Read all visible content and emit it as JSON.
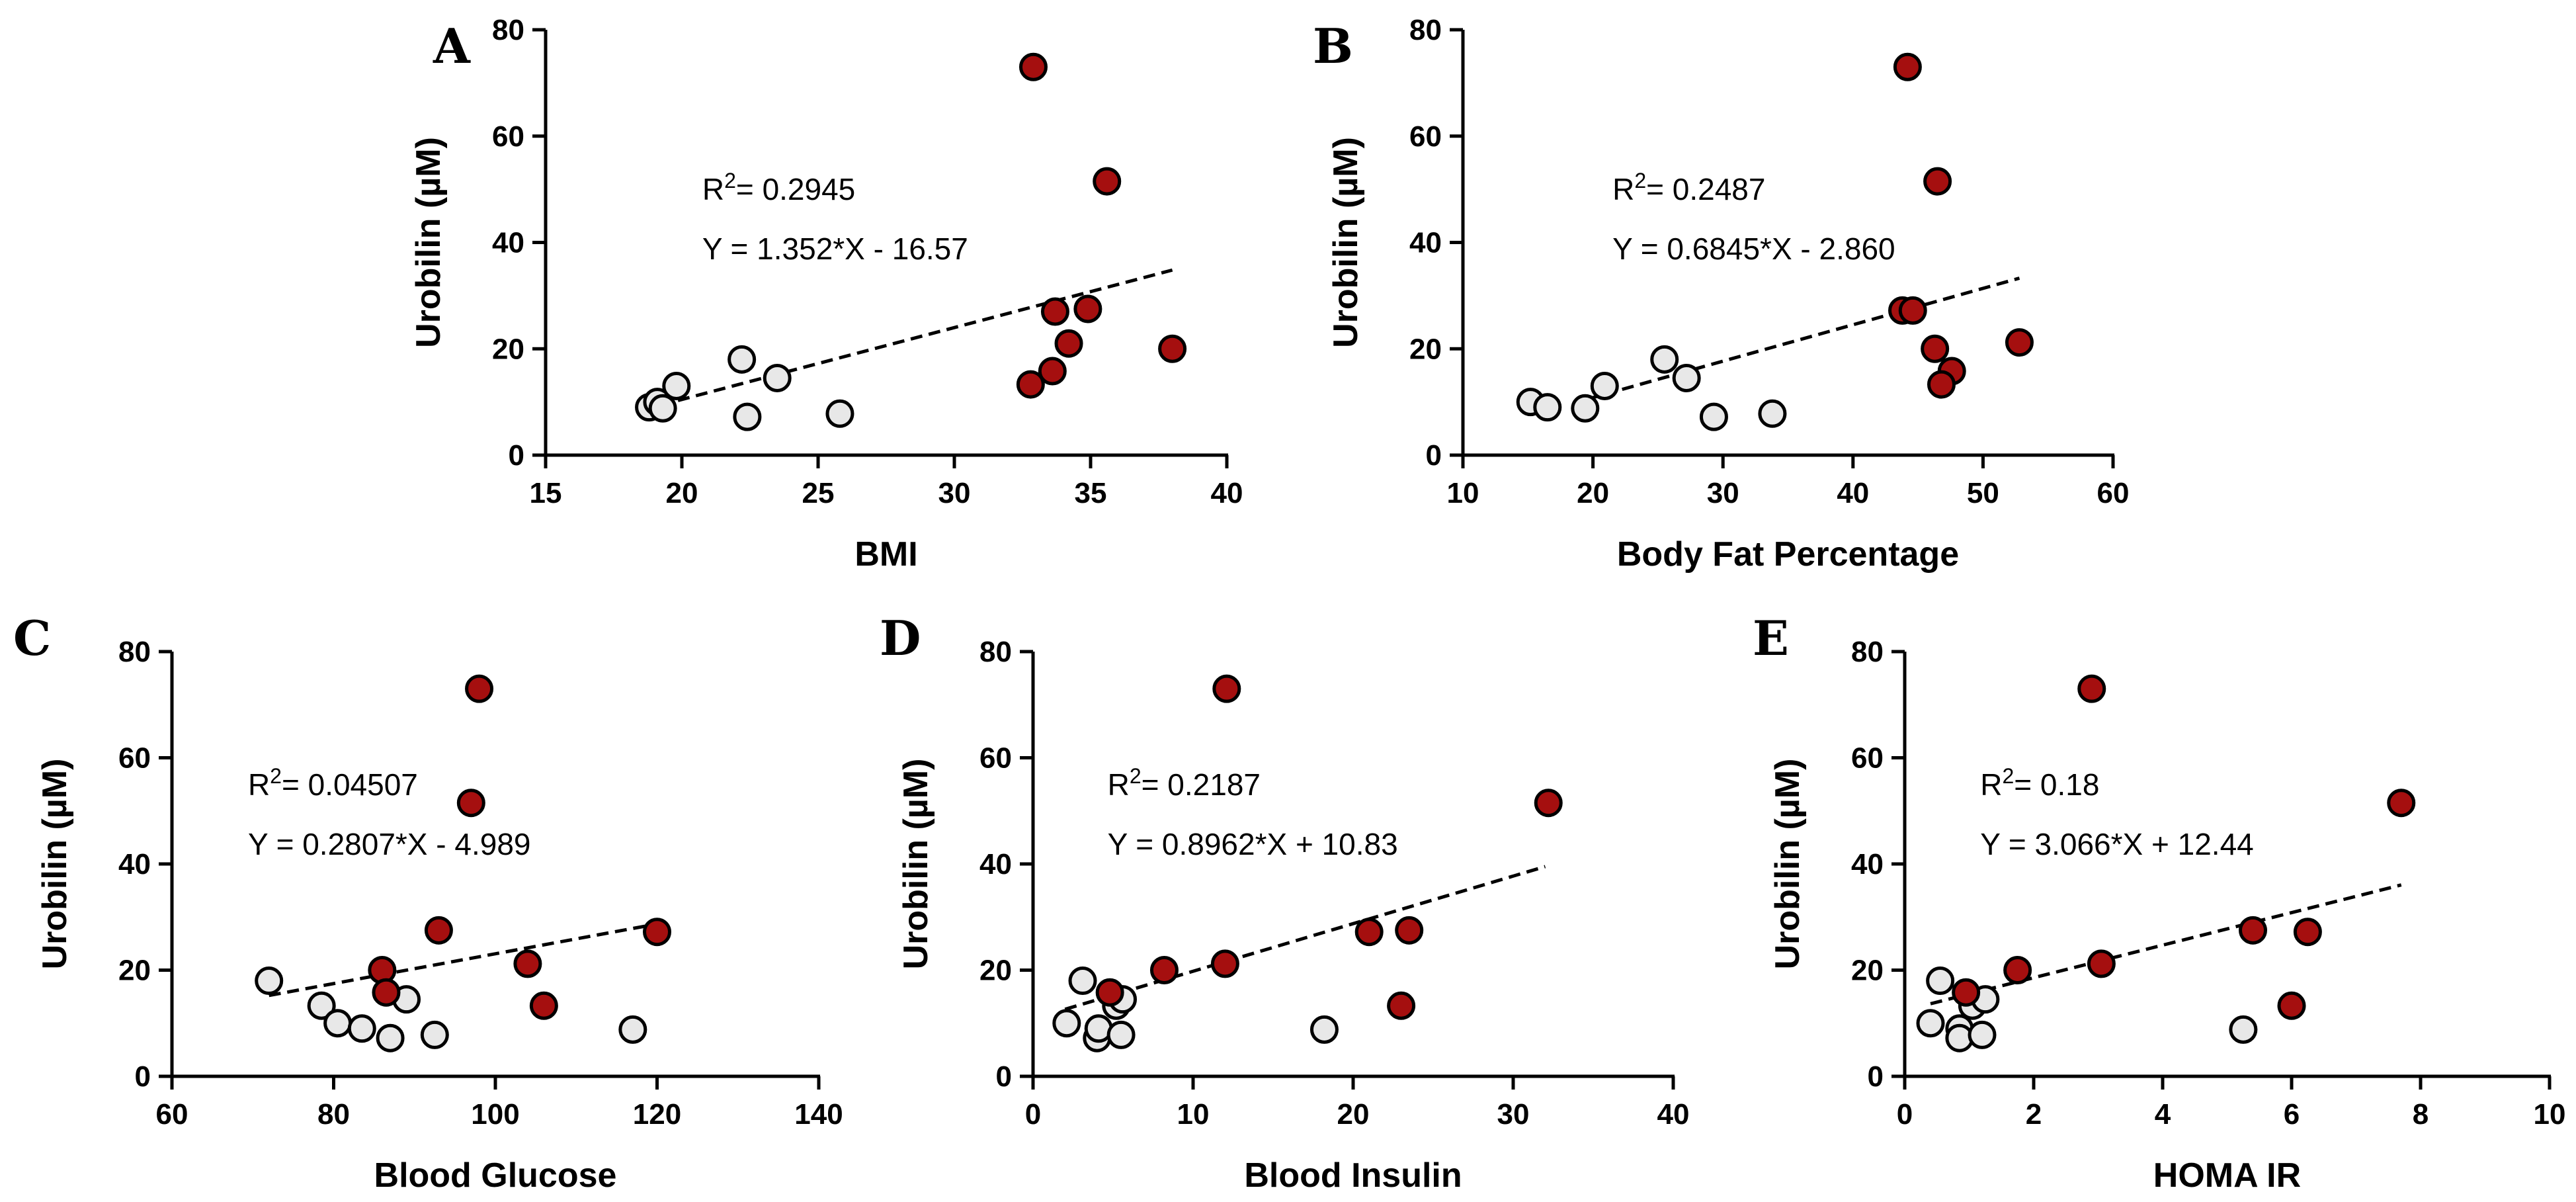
{
  "chart_data": [
    {
      "type": "scatter",
      "panel": "A",
      "xlabel": "BMI",
      "ylabel": "Urobilin (µM)",
      "xlim": [
        15,
        40
      ],
      "xticks": [
        15,
        20,
        25,
        30,
        35,
        40
      ],
      "ylim": [
        0,
        80
      ],
      "yticks": [
        0,
        20,
        40,
        60,
        80
      ],
      "r2_text": "R²= 0.2945",
      "equation_text": "Y = 1.352*X - 16.57",
      "fit": {
        "slope": 1.352,
        "intercept": -16.57,
        "x_range": [
          19.2,
          38
        ]
      },
      "series": [
        {
          "name": "group-light",
          "color": "#e8e8e8",
          "x": [
            18.8,
            19.1,
            19.3,
            19.8,
            22.2,
            22.4,
            23.5,
            25.8
          ],
          "y": [
            9,
            10,
            8.8,
            13,
            18,
            7.2,
            14.5,
            7.8
          ]
        },
        {
          "name": "group-dark",
          "color": "#a50f0f",
          "x": [
            32.9,
            35.6,
            33.7,
            34.9,
            34.2,
            33.6,
            32.8,
            38.0
          ],
          "y": [
            73,
            51.5,
            27,
            27.5,
            21,
            15.8,
            13.3,
            20
          ]
        }
      ]
    },
    {
      "type": "scatter",
      "panel": "B",
      "xlabel": "Body Fat Percentage",
      "ylabel": "Urobilin (µM)",
      "xlim": [
        10,
        60
      ],
      "xticks": [
        10,
        20,
        30,
        40,
        50,
        60
      ],
      "ylim": [
        0,
        80
      ],
      "yticks": [
        0,
        20,
        40,
        60,
        80
      ],
      "r2_text": "R²= 0.2487",
      "equation_text": "Y = 0.6845*X - 2.860",
      "fit": {
        "slope": 0.6845,
        "intercept": -2.86,
        "x_range": [
          19.5,
          52.8
        ]
      },
      "series": [
        {
          "name": "group-light",
          "color": "#e8e8e8",
          "x": [
            15.2,
            16.5,
            19.4,
            20.9,
            25.5,
            27.2,
            29.3,
            33.8
          ],
          "y": [
            10,
            9,
            8.8,
            13,
            18,
            14.5,
            7.2,
            7.8
          ]
        },
        {
          "name": "group-dark",
          "color": "#a50f0f",
          "x": [
            44.2,
            46.5,
            43.8,
            44.6,
            46.3,
            47.6,
            46.8,
            52.8
          ],
          "y": [
            73,
            51.5,
            27.2,
            27.2,
            20,
            15.8,
            13.3,
            21.2
          ]
        }
      ]
    },
    {
      "type": "scatter",
      "panel": "C",
      "xlabel": "Blood Glucose",
      "ylabel": "Urobilin (µM)",
      "xlim": [
        60,
        140
      ],
      "xticks": [
        60,
        80,
        100,
        120,
        140
      ],
      "ylim": [
        0,
        80
      ],
      "yticks": [
        0,
        20,
        40,
        60,
        80
      ],
      "r2_text": "R²= 0.04507",
      "equation_text": "Y = 0.2807*X - 4.989",
      "fit": {
        "slope": 0.2807,
        "intercept": -4.989,
        "x_range": [
          72,
          120
        ]
      },
      "series": [
        {
          "name": "group-light",
          "color": "#e8e8e8",
          "x": [
            72,
            78.5,
            80.5,
            83.5,
            87,
            89,
            92.5,
            117
          ],
          "y": [
            18,
            13.3,
            10,
            9,
            7.2,
            14.5,
            7.8,
            8.8
          ]
        },
        {
          "name": "group-dark",
          "color": "#a50f0f",
          "x": [
            98,
            97,
            93,
            86,
            86.5,
            104,
            106,
            120
          ],
          "y": [
            73,
            51.5,
            27.5,
            20,
            15.8,
            21.2,
            13.3,
            27.2
          ]
        }
      ]
    },
    {
      "type": "scatter",
      "panel": "D",
      "xlabel": "Blood Insulin",
      "ylabel": "Urobilin (µM)",
      "xlim": [
        0,
        40
      ],
      "xticks": [
        0,
        10,
        20,
        30,
        40
      ],
      "ylim": [
        0,
        80
      ],
      "yticks": [
        0,
        20,
        40,
        60,
        80
      ],
      "r2_text": "R²= 0.2187",
      "equation_text": "Y = 0.8962*X + 10.83",
      "fit": {
        "slope": 0.8962,
        "intercept": 10.83,
        "x_range": [
          2.0,
          32
        ]
      },
      "series": [
        {
          "name": "group-light",
          "color": "#e8e8e8",
          "x": [
            2.1,
            3.1,
            4.0,
            4.1,
            5.2,
            5.6,
            5.5,
            18.2
          ],
          "y": [
            10,
            18,
            7.2,
            9,
            13.3,
            14.5,
            7.8,
            8.8
          ]
        },
        {
          "name": "group-dark",
          "color": "#a50f0f",
          "x": [
            12.1,
            32.2,
            21,
            23.5,
            12,
            8.2,
            4.8,
            23.0
          ],
          "y": [
            73,
            51.5,
            27.2,
            27.5,
            21.2,
            20,
            15.8,
            13.3
          ]
        }
      ]
    },
    {
      "type": "scatter",
      "panel": "E",
      "xlabel": "HOMA IR",
      "ylabel": "Urobilin (µM)",
      "xlim": [
        0,
        10
      ],
      "xticks": [
        0,
        2,
        4,
        6,
        8,
        10
      ],
      "ylim": [
        0,
        80
      ],
      "yticks": [
        0,
        20,
        40,
        60,
        80
      ],
      "r2_text": "R²= 0.18",
      "equation_text": "Y = 3.066*X + 12.44",
      "fit": {
        "slope": 3.066,
        "intercept": 12.44,
        "x_range": [
          0.4,
          7.7
        ]
      },
      "series": [
        {
          "name": "group-light",
          "color": "#e8e8e8",
          "x": [
            0.4,
            0.55,
            0.85,
            0.85,
            1.05,
            1.25,
            1.2,
            5.25
          ],
          "y": [
            10,
            18,
            9,
            7.2,
            13.3,
            14.5,
            7.8,
            8.8
          ]
        },
        {
          "name": "group-dark",
          "color": "#a50f0f",
          "x": [
            2.9,
            7.7,
            5.4,
            6.25,
            3.05,
            1.75,
            0.95,
            6.0
          ],
          "y": [
            73,
            51.5,
            27.5,
            27.2,
            21.2,
            20,
            15.8,
            13.3
          ]
        }
      ]
    }
  ]
}
